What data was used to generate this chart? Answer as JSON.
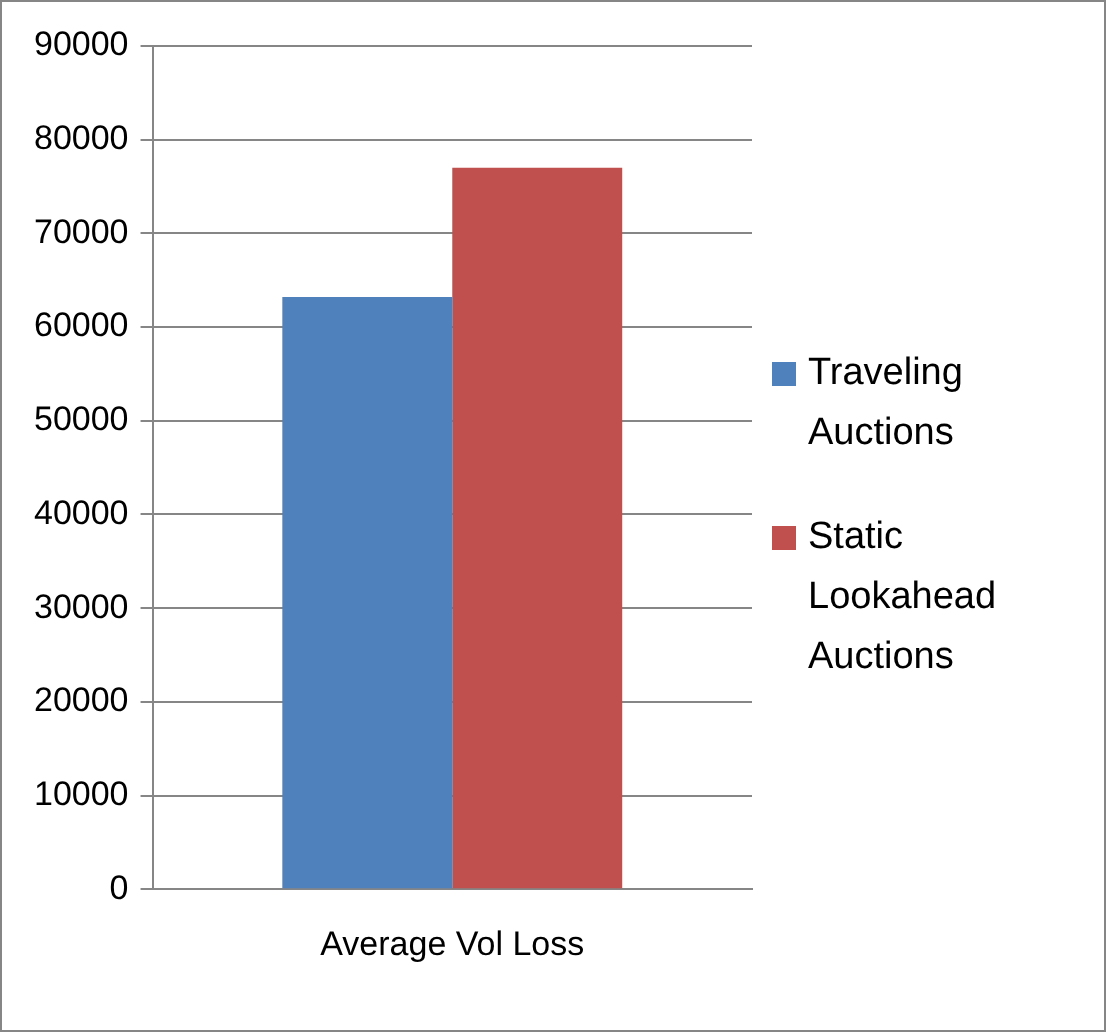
{
  "chart_data": {
    "type": "bar",
    "categories": [
      "Average Vol Loss"
    ],
    "series": [
      {
        "name": "Traveling Auctions",
        "color": "#4f81bd",
        "values": [
          63200
        ]
      },
      {
        "name": "Static Lookahead Auctions",
        "color": "#c0504d",
        "values": [
          77000
        ]
      }
    ],
    "ylim": [
      0,
      90000
    ],
    "yticks": [
      0,
      10000,
      20000,
      30000,
      40000,
      50000,
      60000,
      70000,
      80000,
      90000
    ],
    "grid": "y",
    "legend": "right"
  }
}
